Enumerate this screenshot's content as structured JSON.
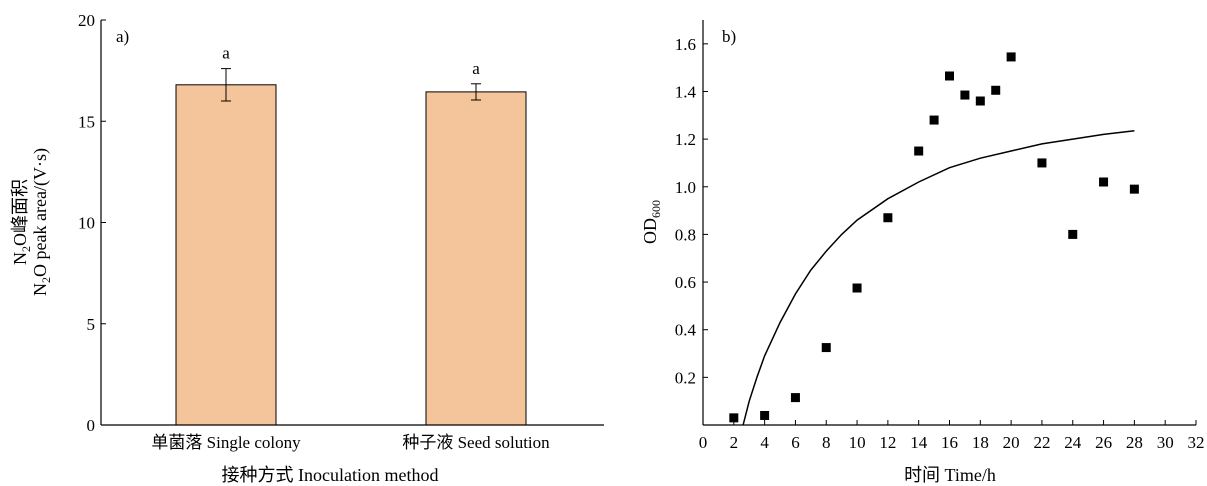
{
  "chart_data": [
    {
      "type": "bar",
      "panel_label": "a)",
      "categories": [
        "单菌落 Single colony",
        "种子液 Seed solution"
      ],
      "values": [
        16.8,
        16.45
      ],
      "errors": [
        0.8,
        0.4
      ],
      "significance": [
        "a",
        "a"
      ],
      "bar_color": "#f4c49a",
      "xlabel": "接种方式 Inoculation method",
      "ylabel_lines": [
        {
          "base": "N",
          "sub": "2",
          "rest": "O峰面积"
        },
        {
          "base": "N",
          "sub": "2",
          "rest": "O peak area/(V·s)"
        }
      ],
      "ylim": [
        0,
        20
      ],
      "yticks": [
        "0",
        "5",
        "10",
        "15",
        "20"
      ]
    },
    {
      "type": "scatter",
      "panel_label": "b)",
      "series": [
        {
          "marker": "square",
          "x": [
            2,
            4,
            6,
            8,
            10,
            12,
            14,
            15,
            16,
            17,
            18,
            19,
            20,
            22,
            24,
            26,
            28
          ],
          "y": [
            0.03,
            0.04,
            0.115,
            0.325,
            0.575,
            0.87,
            1.15,
            1.28,
            1.465,
            1.385,
            1.36,
            1.405,
            1.545,
            1.1,
            0.8,
            1.02,
            0.99
          ]
        }
      ],
      "fit_curve": {
        "x": [
          2.6,
          3,
          3.5,
          4,
          5,
          6,
          7,
          8,
          9,
          10,
          12,
          14,
          16,
          18,
          20,
          22,
          24,
          26,
          28
        ],
        "y": [
          0.0,
          0.1,
          0.2,
          0.29,
          0.43,
          0.55,
          0.65,
          0.73,
          0.8,
          0.86,
          0.95,
          1.02,
          1.08,
          1.12,
          1.15,
          1.18,
          1.2,
          1.22,
          1.235
        ]
      },
      "xlabel": "时间 Time/h",
      "ylabel": {
        "base": "OD",
        "sub": "600"
      },
      "xlim": [
        0,
        32
      ],
      "ylim": [
        0,
        1.7
      ],
      "xticks": [
        "0",
        "2",
        "4",
        "6",
        "8",
        "10",
        "12",
        "14",
        "16",
        "18",
        "20",
        "22",
        "24",
        "26",
        "28",
        "30",
        "32"
      ],
      "yticks": [
        "0.2",
        "0.4",
        "0.6",
        "0.8",
        "1.0",
        "1.2",
        "1.4",
        "1.6"
      ]
    }
  ]
}
